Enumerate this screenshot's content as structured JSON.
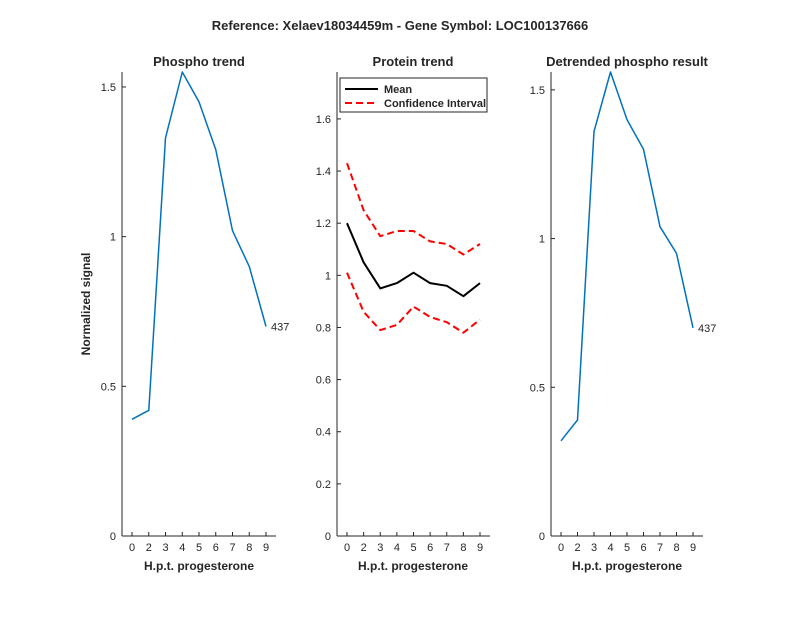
{
  "figure": {
    "title": "Reference:  Xelaev18034459m - Gene Symbol:  LOC100137666"
  },
  "chart_data": [
    {
      "type": "line",
      "title": "Phospho trend",
      "xlabel": "H.p.t. progesterone",
      "ylabel": "Normalized signal",
      "categories": [
        "0",
        "2",
        "3",
        "4",
        "5",
        "6",
        "7",
        "8",
        "9"
      ],
      "ylim": [
        0,
        1.55
      ],
      "yticks": [
        0,
        0.5,
        1,
        1.5
      ],
      "ytick_labels": [
        "0",
        "0.5",
        "1",
        "1.5"
      ],
      "series": [
        {
          "name": "Phospho",
          "color": "#0072BD",
          "style": "solid",
          "values": [
            0.39,
            0.42,
            1.33,
            1.55,
            1.45,
            1.29,
            1.02,
            0.9,
            0.7
          ]
        }
      ],
      "annotation": {
        "text": "437",
        "series": 0,
        "index": 8
      }
    },
    {
      "type": "line",
      "title": "Protein trend",
      "xlabel": "H.p.t. progesterone",
      "ylabel": "",
      "categories": [
        "0",
        "2",
        "3",
        "4",
        "5",
        "6",
        "7",
        "8",
        "9"
      ],
      "ylim": [
        0,
        1.78
      ],
      "yticks": [
        0,
        0.2,
        0.4,
        0.6,
        0.8,
        1,
        1.2,
        1.4,
        1.6
      ],
      "ytick_labels": [
        "0",
        "0.2",
        "0.4",
        "0.6",
        "0.8",
        "1",
        "1.2",
        "1.4",
        "1.6"
      ],
      "series": [
        {
          "name": "Mean",
          "color": "#000000",
          "style": "solid",
          "values": [
            1.2,
            1.05,
            0.95,
            0.97,
            1.01,
            0.97,
            0.96,
            0.92,
            0.97
          ]
        },
        {
          "name": "Confidence Interval",
          "color": "#FF0000",
          "style": "dashed",
          "values": [
            1.43,
            1.25,
            1.15,
            1.17,
            1.17,
            1.13,
            1.12,
            1.08,
            1.12
          ]
        },
        {
          "name": "Confidence Interval (lower)",
          "color": "#FF0000",
          "style": "dashed",
          "values": [
            1.01,
            0.86,
            0.79,
            0.81,
            0.88,
            0.84,
            0.82,
            0.78,
            0.83
          ]
        }
      ],
      "legend": {
        "position": "top-left",
        "entries": [
          {
            "label": "Mean",
            "color": "#000000",
            "style": "solid"
          },
          {
            "label": "Confidence Interval",
            "color": "#FF0000",
            "style": "dashed"
          }
        ]
      }
    },
    {
      "type": "line",
      "title": "Detrended phospho result",
      "xlabel": "H.p.t. progesterone",
      "ylabel": "",
      "categories": [
        "0",
        "2",
        "3",
        "4",
        "5",
        "6",
        "7",
        "8",
        "9"
      ],
      "ylim": [
        0,
        1.56
      ],
      "yticks": [
        0,
        0.5,
        1,
        1.5
      ],
      "ytick_labels": [
        "0",
        "0.5",
        "1",
        "1.5"
      ],
      "series": [
        {
          "name": "Detrended",
          "color": "#0072BD",
          "style": "solid",
          "values": [
            0.32,
            0.39,
            1.36,
            1.56,
            1.4,
            1.3,
            1.04,
            0.95,
            0.7
          ]
        }
      ],
      "annotation": {
        "text": "437",
        "series": 0,
        "index": 8
      }
    }
  ]
}
